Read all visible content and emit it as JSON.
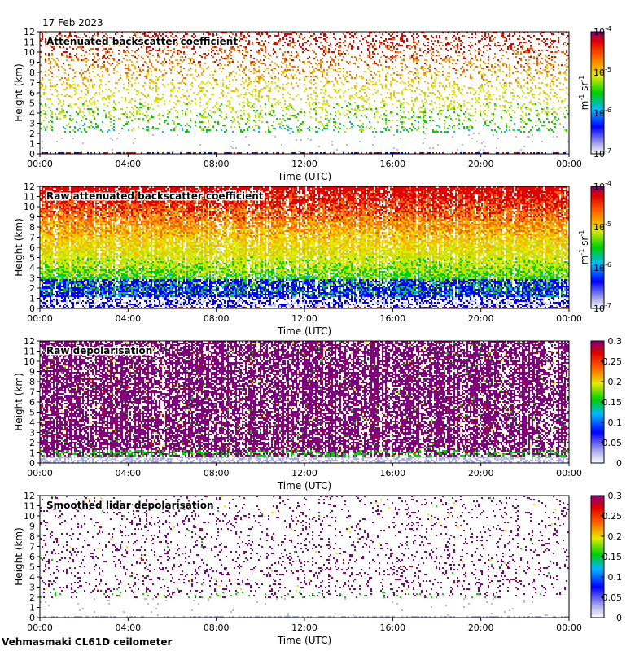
{
  "date_label": "17 Feb 2023",
  "footer": "Vehmasmaki CL61D ceilometer",
  "chart_data": [
    {
      "type": "heatmap",
      "title": "Attenuated backscatter coefficient",
      "xlabel": "Time (UTC)",
      "ylabel": "Height (km)",
      "xticks": [
        "00:00",
        "04:00",
        "08:00",
        "12:00",
        "16:00",
        "20:00",
        "00:00"
      ],
      "yticks": [
        "0",
        "1",
        "2",
        "3",
        "4",
        "5",
        "6",
        "7",
        "8",
        "9",
        "10",
        "11",
        "12"
      ],
      "ylim": [
        0,
        12
      ],
      "colorbar": {
        "scale": "log",
        "ticks": [
          {
            "base": "10",
            "exp": "-4"
          },
          {
            "base": "10",
            "exp": "-5"
          },
          {
            "base": "10",
            "exp": "-6"
          },
          {
            "base": "10",
            "exp": "-7"
          }
        ],
        "unit": {
          "a": "m",
          "a_exp": "-1",
          "b": " sr",
          "b_exp": "-1"
        }
      },
      "pattern": "sparse-signal",
      "density": 0.28,
      "cloud_base_km": 2.2
    },
    {
      "type": "heatmap",
      "title": "Raw attenuated backscatter coefficient",
      "xlabel": "Time (UTC)",
      "ylabel": "Height (km)",
      "xticks": [
        "00:00",
        "04:00",
        "08:00",
        "12:00",
        "16:00",
        "20:00",
        "00:00"
      ],
      "yticks": [
        "0",
        "1",
        "2",
        "3",
        "4",
        "5",
        "6",
        "7",
        "8",
        "9",
        "10",
        "11",
        "12"
      ],
      "ylim": [
        0,
        12
      ],
      "colorbar": {
        "scale": "log",
        "ticks": [
          {
            "base": "10",
            "exp": "-4"
          },
          {
            "base": "10",
            "exp": "-5"
          },
          {
            "base": "10",
            "exp": "-6"
          },
          {
            "base": "10",
            "exp": "-7"
          }
        ],
        "unit": {
          "a": "m",
          "a_exp": "-1",
          "b": " sr",
          "b_exp": "-1"
        }
      },
      "pattern": "dense-noise",
      "density": 0.9,
      "cloud_base_km": 1.2
    },
    {
      "type": "heatmap",
      "title": "Raw depolarisation",
      "xlabel": "Time (UTC)",
      "ylabel": "Height (km)",
      "xticks": [
        "00:00",
        "04:00",
        "08:00",
        "12:00",
        "16:00",
        "20:00",
        "00:00"
      ],
      "yticks": [
        "0",
        "1",
        "2",
        "3",
        "4",
        "5",
        "6",
        "7",
        "8",
        "9",
        "10",
        "11",
        "12"
      ],
      "ylim": [
        0,
        12
      ],
      "colorbar": {
        "scale": "linear",
        "ticks": [
          "0.3",
          "0.25",
          "0.2",
          "0.15",
          "0.1",
          "0.05",
          "0"
        ]
      },
      "pattern": "dense-depol",
      "density": 0.7,
      "cloud_base_km": 0.8
    },
    {
      "type": "heatmap",
      "title": "Smoothed lidar depolarisation",
      "xlabel": "Time (UTC)",
      "ylabel": "Height (km)",
      "xticks": [
        "00:00",
        "04:00",
        "08:00",
        "12:00",
        "16:00",
        "20:00",
        "00:00"
      ],
      "yticks": [
        "0",
        "1",
        "2",
        "3",
        "4",
        "5",
        "6",
        "7",
        "8",
        "9",
        "10",
        "11",
        "12"
      ],
      "ylim": [
        0,
        12
      ],
      "colorbar": {
        "scale": "linear",
        "ticks": [
          "0.3",
          "0.25",
          "0.2",
          "0.15",
          "0.1",
          "0.05",
          "0"
        ]
      },
      "pattern": "sparse-depol",
      "density": 0.16,
      "cloud_base_km": 2.0
    }
  ]
}
